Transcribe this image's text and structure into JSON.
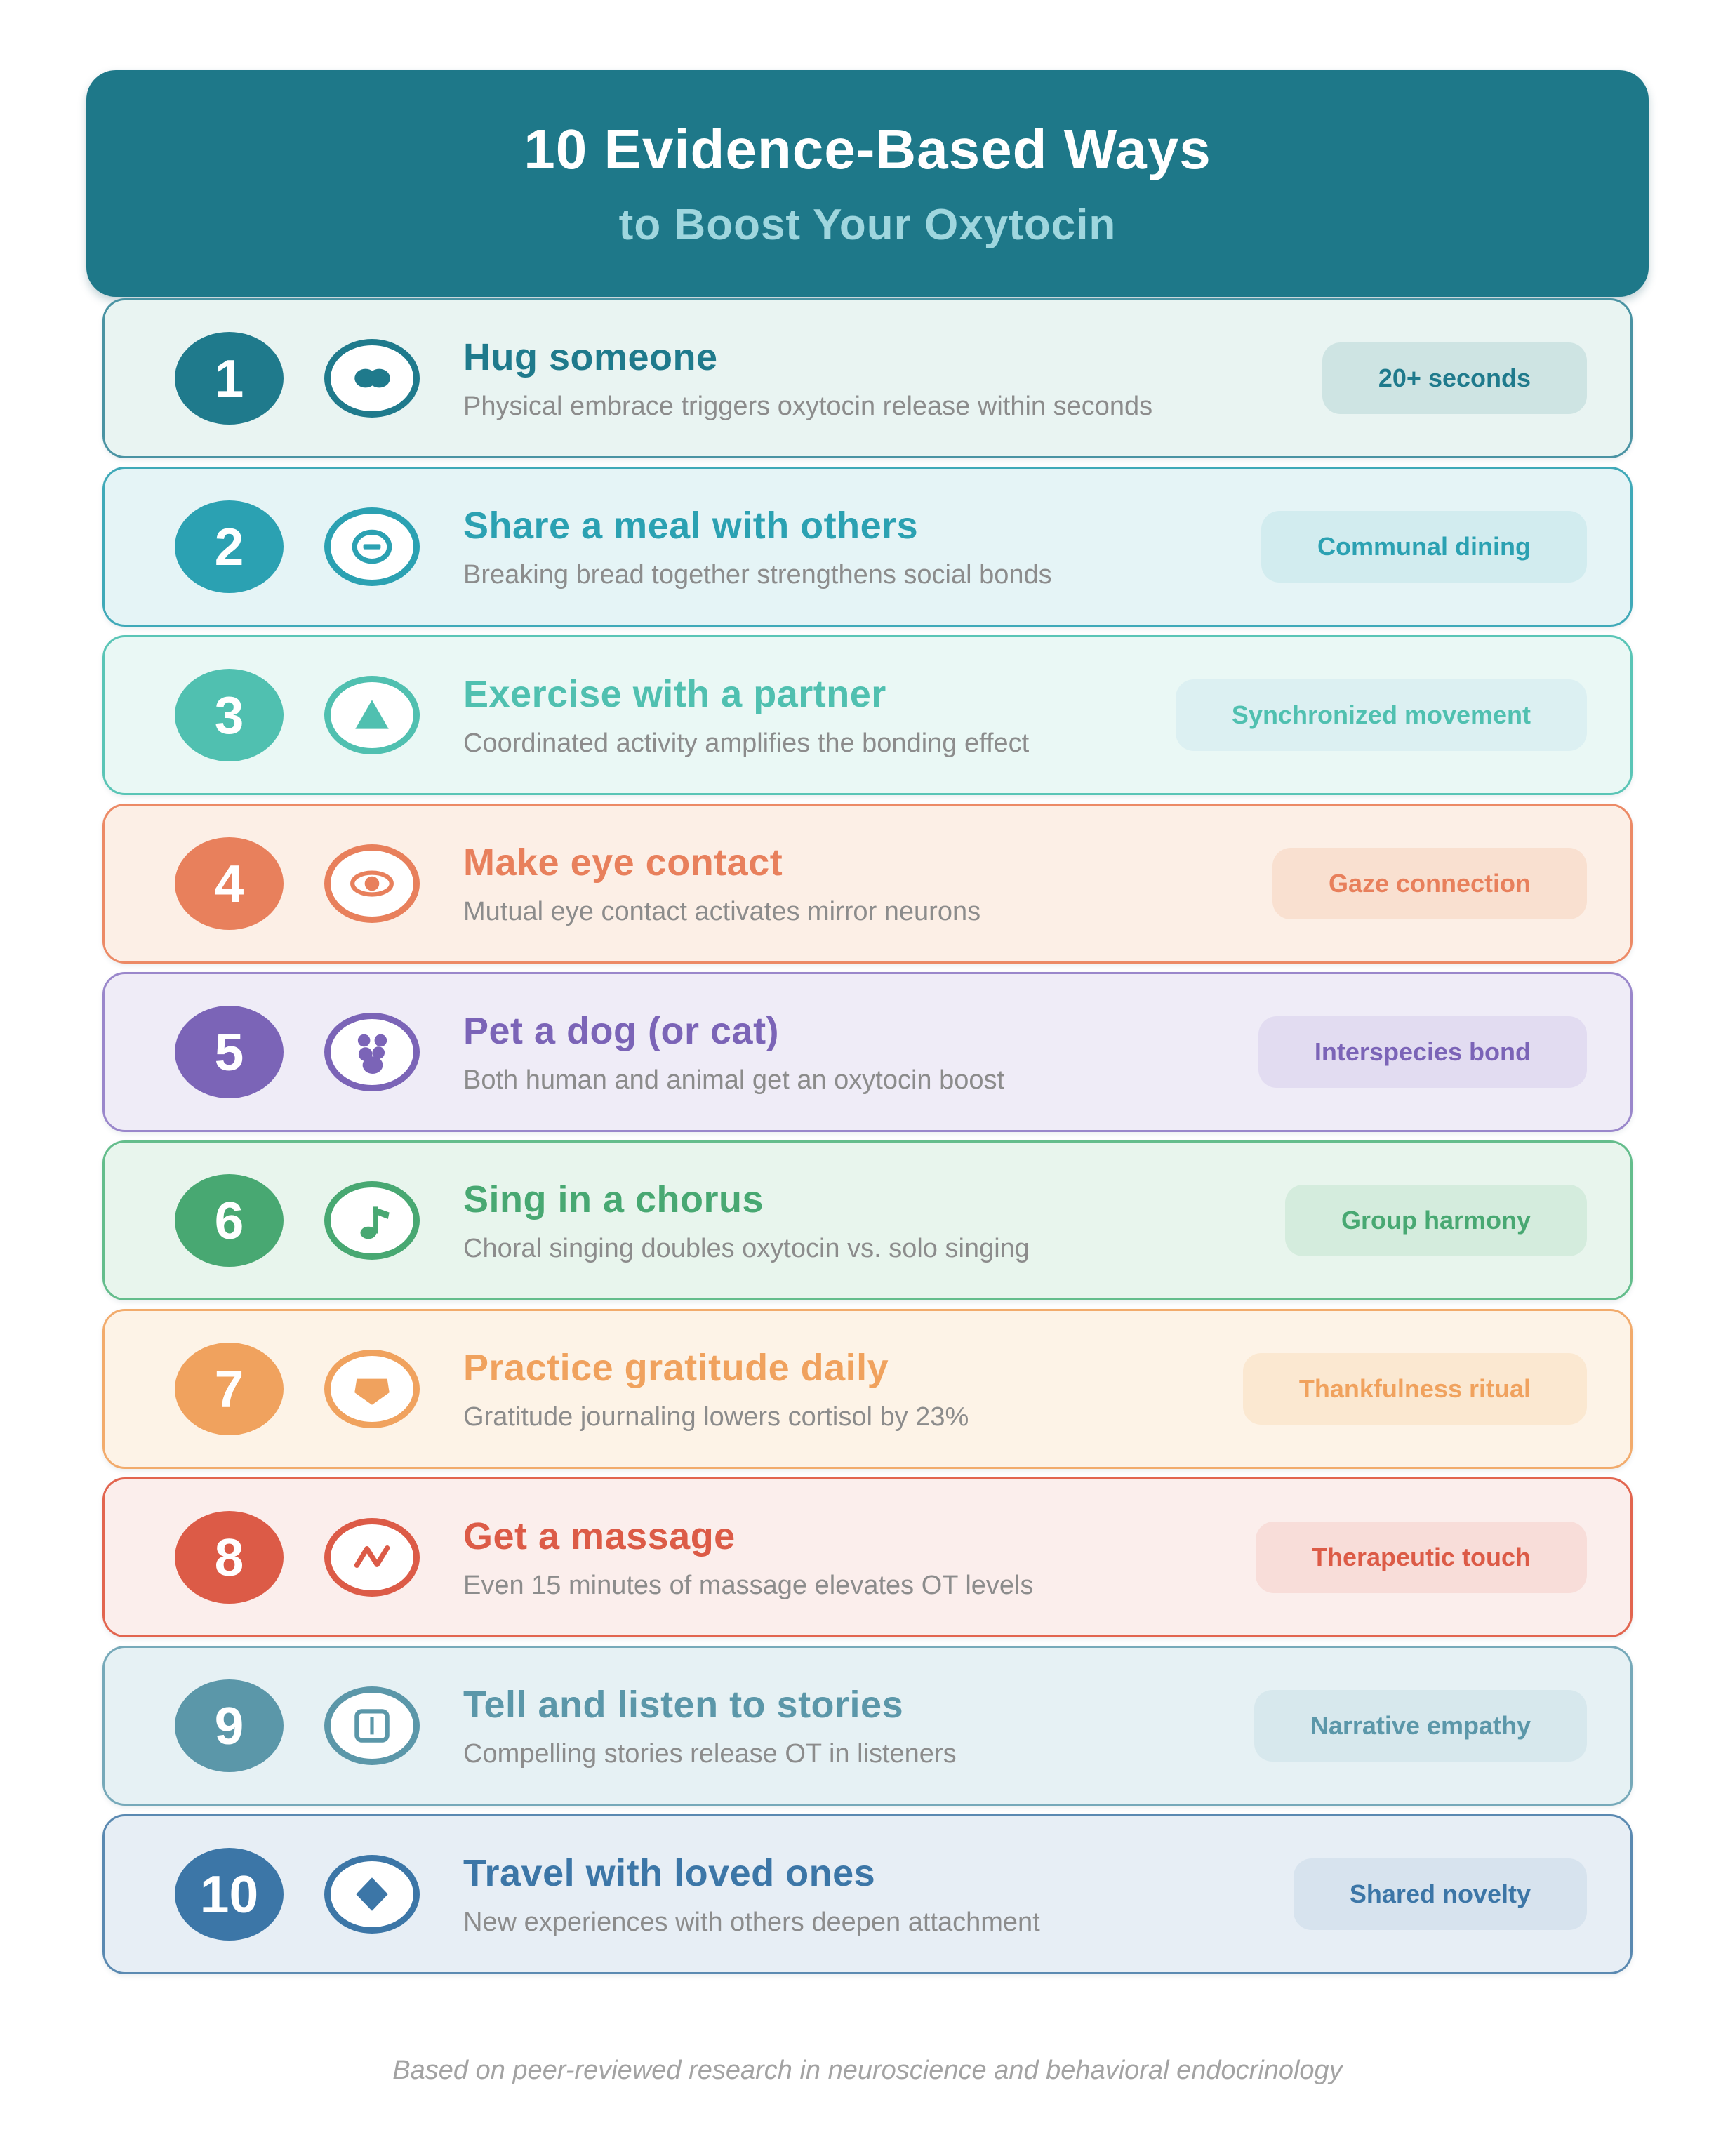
{
  "header": {
    "title_line1": "10 Evidence-Based Ways",
    "title_line2": "to Boost Your Oxytocin",
    "bg_color": "#1e7889",
    "subtitle_color": "#9fd6de"
  },
  "items": [
    {
      "number": "1",
      "title": "Hug someone",
      "description": "Physical embrace triggers oxytocin release within seconds",
      "badge": "20+ seconds",
      "icon": "hug-icon",
      "colors": {
        "accent": "#1f7a8c",
        "border": "#4a93a3",
        "bg": "#e9f4f2",
        "badge_bg": "#cee4e3"
      }
    },
    {
      "number": "2",
      "title": "Share a meal with others",
      "description": "Breaking bread together strengthens social bonds",
      "badge": "Communal dining",
      "icon": "meal-icon",
      "colors": {
        "accent": "#2ba1b2",
        "border": "#3fa9b8",
        "bg": "#e5f4f6",
        "badge_bg": "#d2ecef"
      }
    },
    {
      "number": "3",
      "title": "Exercise with a partner",
      "description": "Coordinated activity amplifies the bonding effect",
      "badge": "Synchronized movement",
      "icon": "exercise-icon",
      "colors": {
        "accent": "#50c0b0",
        "border": "#5ac5b6",
        "bg": "#eaf8f5",
        "badge_bg": "#dcf0f2"
      }
    },
    {
      "number": "4",
      "title": "Make eye contact",
      "description": "Mutual eye contact activates mirror neurons",
      "badge": "Gaze connection",
      "icon": "eye-icon",
      "colors": {
        "accent": "#e8805c",
        "border": "#ec8a66",
        "bg": "#fcefe6",
        "badge_bg": "#f9e0d0"
      }
    },
    {
      "number": "5",
      "title": "Pet a dog (or cat)",
      "description": "Both human and animal get an oxytocin boost",
      "badge": "Interspecies bond",
      "icon": "paw-icon",
      "colors": {
        "accent": "#7b64b7",
        "border": "#9a87cb",
        "bg": "#efecf7",
        "badge_bg": "#e2dcf1"
      }
    },
    {
      "number": "6",
      "title": "Sing in a chorus",
      "description": "Choral singing doubles oxytocin vs. solo singing",
      "badge": "Group harmony",
      "icon": "music-note-icon",
      "colors": {
        "accent": "#48a872",
        "border": "#64bd8c",
        "bg": "#e8f5ed",
        "badge_bg": "#d4ecdd"
      }
    },
    {
      "number": "7",
      "title": "Practice gratitude daily",
      "description": "Gratitude journaling lowers cortisol by 23%",
      "badge": "Thankfulness ritual",
      "icon": "gratitude-icon",
      "colors": {
        "accent": "#f0a25e",
        "border": "#f2ab6c",
        "bg": "#fdf3e7",
        "badge_bg": "#fbe8d1"
      }
    },
    {
      "number": "8",
      "title": "Get a massage",
      "description": "Even 15 minutes of massage elevates OT levels",
      "badge": "Therapeutic touch",
      "icon": "massage-wave-icon",
      "colors": {
        "accent": "#dc5b47",
        "border": "#e2654f",
        "bg": "#fbeeec",
        "badge_bg": "#f8ddd9"
      }
    },
    {
      "number": "9",
      "title": "Tell and listen to stories",
      "description": "Compelling stories release OT in listeners",
      "badge": "Narrative empathy",
      "icon": "book-icon",
      "colors": {
        "accent": "#5b97a9",
        "border": "#76a9b9",
        "bg": "#e6f1f4",
        "badge_bg": "#d7e8ed"
      }
    },
    {
      "number": "10",
      "title": "Travel with loved ones",
      "description": "New experiences with others deepen attachment",
      "badge": "Shared novelty",
      "icon": "diamond-icon",
      "colors": {
        "accent": "#3c76a7",
        "border": "#5a89b1",
        "bg": "#e7eef5",
        "badge_bg": "#d7e3ee"
      }
    }
  ],
  "footer": {
    "note": "Based on peer-reviewed research in neuroscience and behavioral endocrinology"
  }
}
